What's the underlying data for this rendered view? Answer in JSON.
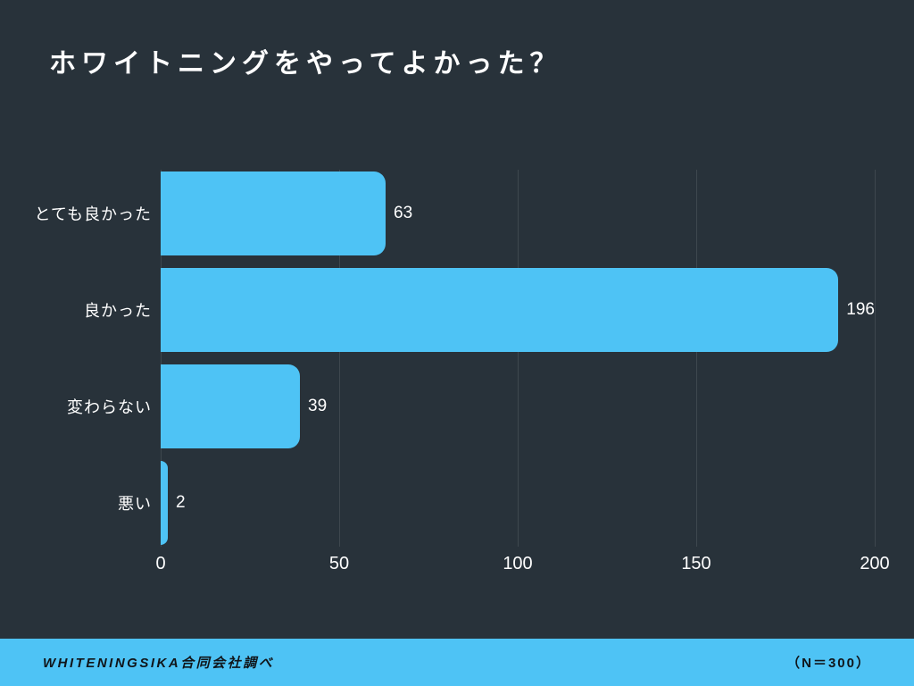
{
  "page": {
    "background_color": "#28323a",
    "accent_color": "#4ec3f5",
    "gridline_color": "#3e474e",
    "text_light_color": "#ffffff",
    "text_dark_color": "#10151a"
  },
  "title": "ホワイトニングをやってよかった？",
  "chart_data": {
    "type": "bar",
    "orientation": "horizontal",
    "title": "ホワイトニングをやってよかった？",
    "categories": [
      "とても良かった",
      "良かった",
      "変わらない",
      "悪い"
    ],
    "values": [
      63,
      196,
      39,
      2
    ],
    "value_labels": [
      "63",
      "196",
      "39",
      "2"
    ],
    "xlim": [
      0,
      200
    ],
    "xticks": [
      0,
      50,
      100,
      150,
      200
    ],
    "xlabel": "",
    "ylabel": "",
    "bar_color": "#4ec3f5",
    "grid": true,
    "legend": false
  },
  "footer": {
    "left": "WHITENINGSIKA合同会社調べ",
    "right": "（N＝300）"
  }
}
